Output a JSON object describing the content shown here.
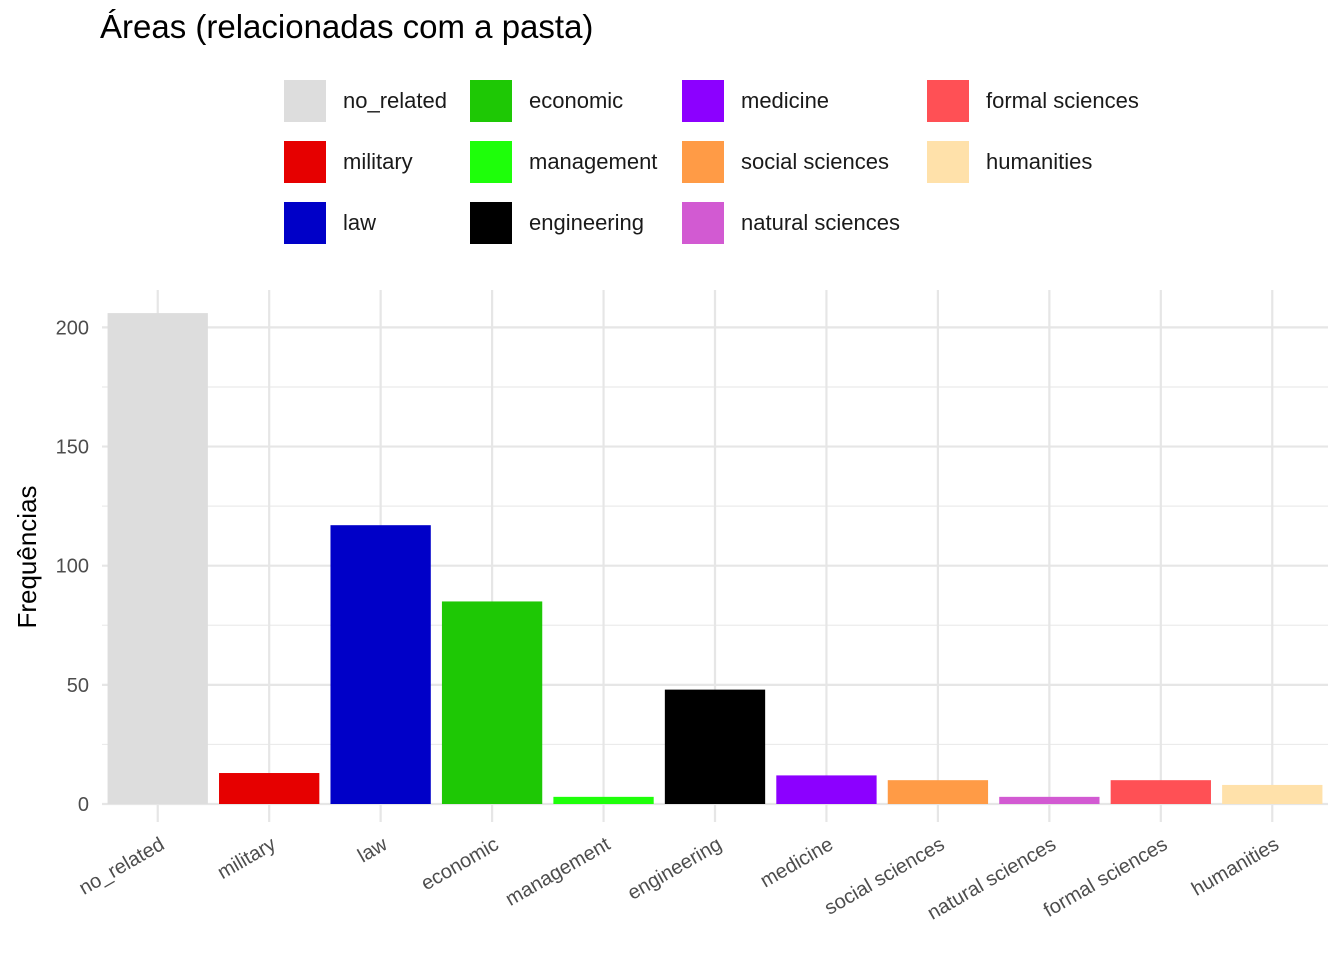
{
  "chart_data": {
    "type": "bar",
    "title": "Áreas (relacionadas com a pasta)",
    "xlabel": "",
    "ylabel": "Frequências",
    "categories": [
      "no_related",
      "military",
      "law",
      "economic",
      "management",
      "engineering",
      "medicine",
      "social sciences",
      "natural sciences",
      "formal sciences",
      "humanities"
    ],
    "values": [
      206,
      13,
      117,
      85,
      3,
      48,
      12,
      10,
      3,
      10,
      8
    ],
    "colors": [
      "#DDDDDD",
      "#E60000",
      "#0000C8",
      "#1EC805",
      "#1EFF0A",
      "#000000",
      "#8C00FF",
      "#FF9B46",
      "#D25AD2",
      "#FF5055",
      "#FFE1AA"
    ],
    "ylim": [
      0,
      216
    ],
    "yticks": [
      0,
      50,
      100,
      150,
      200
    ],
    "grid": true,
    "legend": {
      "position": "top",
      "entries": [
        "no_related",
        "military",
        "law",
        "economic",
        "management",
        "engineering",
        "medicine",
        "social sciences",
        "natural sciences",
        "formal sciences",
        "humanities"
      ]
    }
  }
}
